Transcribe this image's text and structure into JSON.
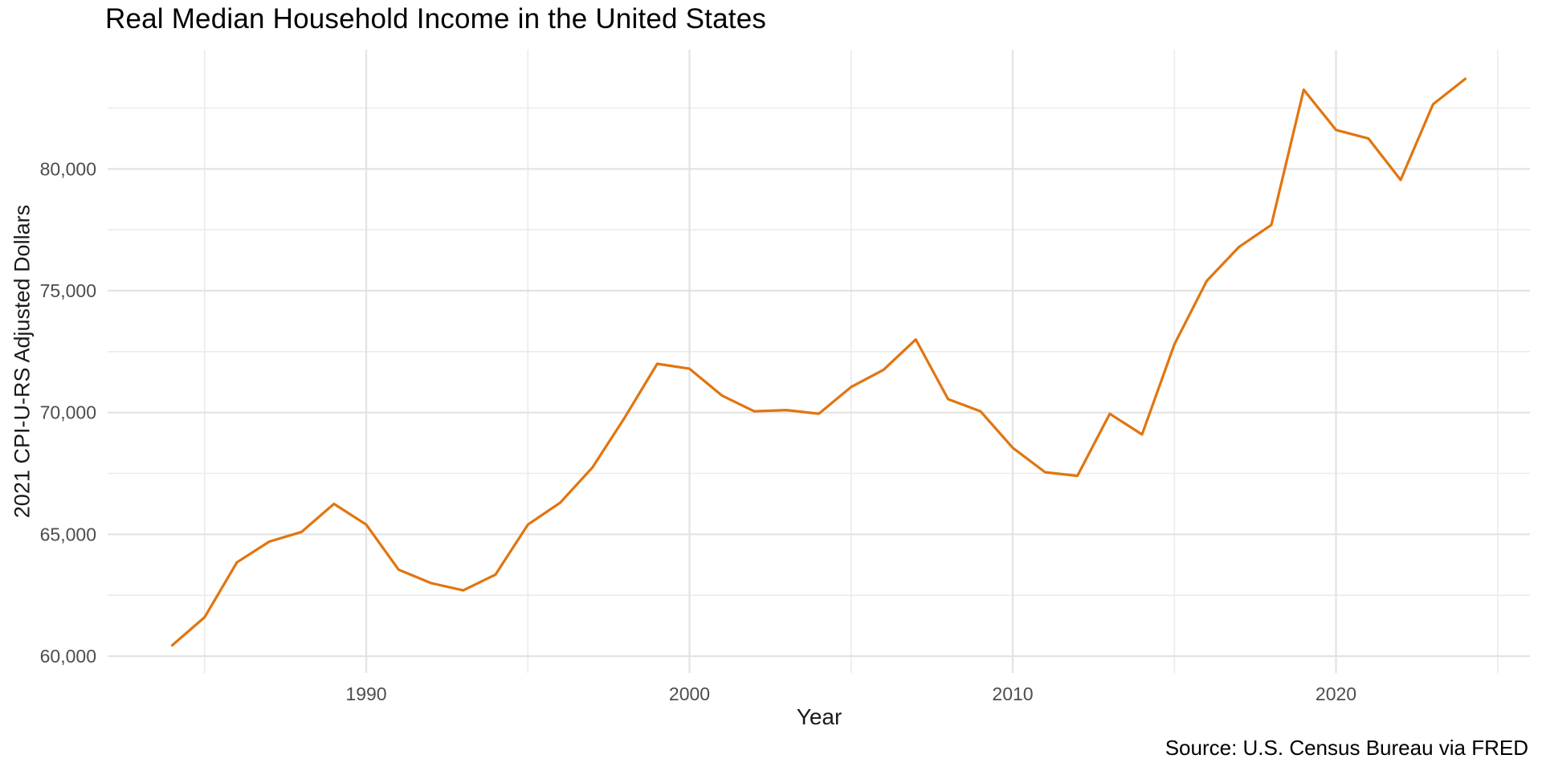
{
  "chart_data": {
    "type": "line",
    "title": "Real Median Household Income in the United States",
    "xlabel": "Year",
    "ylabel": "2021 CPI-U-RS Adjusted Dollars",
    "caption": "Source: U.S. Census Bureau via FRED",
    "grid": true,
    "legend": "none",
    "xlim": [
      1982,
      2026
    ],
    "ylim": [
      59308,
      84889
    ],
    "x_major_ticks": [
      1990,
      2000,
      2010,
      2020
    ],
    "x_tick_labels": [
      "1990",
      "2000",
      "2010",
      "2020"
    ],
    "x_minor_ticks": [
      1985,
      1995,
      2005,
      2015,
      2025
    ],
    "y_major_ticks": [
      60000,
      65000,
      70000,
      75000,
      80000
    ],
    "y_tick_labels": [
      "60,000",
      "65,000",
      "70,000",
      "75,000",
      "80,000"
    ],
    "y_minor_ticks": [
      62500,
      67500,
      72500,
      77500,
      82500
    ],
    "series": [
      {
        "name": "Real median household income",
        "color": "#E1750F",
        "x": [
          1984,
          1985,
          1986,
          1987,
          1988,
          1989,
          1990,
          1991,
          1992,
          1993,
          1994,
          1995,
          1996,
          1997,
          1998,
          1999,
          2000,
          2001,
          2002,
          2003,
          2004,
          2005,
          2006,
          2007,
          2008,
          2009,
          2010,
          2011,
          2012,
          2013,
          2014,
          2015,
          2016,
          2017,
          2018,
          2019,
          2020,
          2021,
          2022,
          2023,
          2024
        ],
        "values": [
          60450,
          61600,
          63850,
          64700,
          65100,
          66250,
          65400,
          63550,
          63000,
          62700,
          63350,
          65400,
          66300,
          67750,
          69800,
          72000,
          71800,
          70700,
          70050,
          70100,
          69950,
          71050,
          71750,
          73000,
          70550,
          70050,
          68550,
          67550,
          67400,
          69950,
          69100,
          72800,
          75400,
          76800,
          77700,
          83250,
          81600,
          81250,
          79550,
          82650,
          83700
        ]
      }
    ],
    "colors": {
      "background": "#FFFFFF",
      "grid_major": "#E3E3E3",
      "grid_minor": "#EBEBEB",
      "line": "#E1750F",
      "tick_text": "#4D4D4D",
      "title_text": "#000000",
      "axis_title_text": "#1A1A1A"
    }
  }
}
